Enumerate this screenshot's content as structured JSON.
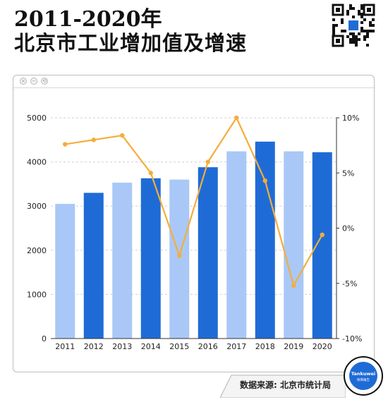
{
  "header": {
    "title_line1": "2011-2020年",
    "title_line2": "北京市工业增加值及增速"
  },
  "window": {
    "buttons": [
      "×",
      "−",
      "⟲"
    ]
  },
  "badge": {
    "text_top": "Tankuwei",
    "text_bottom": "探库报告"
  },
  "source": "数据来源: 北京市统计局",
  "colors": {
    "bar_light": "#a9c8f7",
    "bar_dark": "#1f6bd6",
    "line": "#f5ad3b",
    "axis": "#333333",
    "grid": "#d0d0d0"
  },
  "chart_data": {
    "type": "bar",
    "categories": [
      "2011",
      "2012",
      "2013",
      "2014",
      "2015",
      "2016",
      "2017",
      "2018",
      "2019",
      "2020"
    ],
    "series": [
      {
        "type": "bar",
        "axis": "left",
        "values": [
          3050,
          3300,
          3530,
          3630,
          3600,
          3880,
          4240,
          4460,
          4240,
          4220
        ]
      },
      {
        "type": "line",
        "axis": "right",
        "values": [
          7.6,
          8.0,
          8.4,
          5.0,
          -2.5,
          6.0,
          10.0,
          4.3,
          -5.2,
          -0.6
        ]
      }
    ],
    "y_left": {
      "ylim": [
        0,
        5000
      ],
      "ticks": [
        "0",
        "1000",
        "2000",
        "3000",
        "4000",
        "5000"
      ]
    },
    "y_right": {
      "ylim": [
        -10,
        10
      ],
      "ticks": [
        "-10%",
        "-5%",
        "0%",
        "5%",
        "10%"
      ]
    },
    "grid": true
  }
}
